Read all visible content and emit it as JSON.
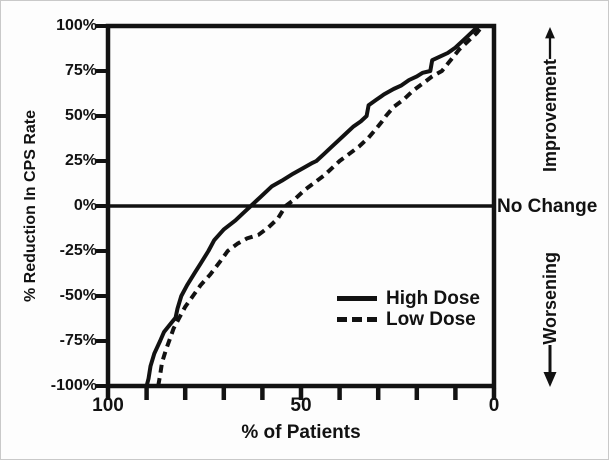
{
  "figure": {
    "background": "#fdfdfd",
    "ink": "#121212"
  },
  "chart_data": {
    "type": "line",
    "title": "",
    "xlabel": "% of Patients",
    "ylabel": "% Reduction In CPS Rate",
    "x_axis": {
      "min": 0,
      "max": 100,
      "direction": "100 at left, 0 at right",
      "major_tick_values": [
        100,
        50,
        0
      ],
      "major_tick_labels": [
        "100",
        "50",
        "0"
      ],
      "minor_tick_step": 10
    },
    "y_axis": {
      "min": -100,
      "max": 100,
      "tick_step": 25,
      "tick_values": [
        100,
        75,
        50,
        25,
        0,
        -25,
        -50,
        -75,
        -100
      ],
      "tick_labels": [
        "100%",
        "75%",
        "50%",
        "25%",
        "0%",
        "-25%",
        "-50%",
        "-75%",
        "-100%"
      ]
    },
    "reference_line": {
      "y": 0,
      "label": "No Change"
    },
    "legend": {
      "position": "inside-lower-right",
      "entries": [
        "High Dose",
        "Low Dose"
      ]
    },
    "series": [
      {
        "name": "High Dose",
        "style": "solid",
        "points_percent_patients_vs_percent_reduction": [
          [
            90,
            -100
          ],
          [
            89.5,
            -96
          ],
          [
            89,
            -89
          ],
          [
            88,
            -82
          ],
          [
            86.5,
            -75
          ],
          [
            85.5,
            -70
          ],
          [
            84,
            -66
          ],
          [
            82.5,
            -62
          ],
          [
            82,
            -57
          ],
          [
            81,
            -50
          ],
          [
            79.5,
            -44
          ],
          [
            77.5,
            -37
          ],
          [
            76,
            -32
          ],
          [
            74,
            -25
          ],
          [
            72.5,
            -19
          ],
          [
            70,
            -13
          ],
          [
            67,
            -8
          ],
          [
            65,
            -4
          ],
          [
            63,
            0
          ],
          [
            60.5,
            5
          ],
          [
            57.5,
            11
          ],
          [
            55,
            14
          ],
          [
            52,
            18
          ],
          [
            49.5,
            21
          ],
          [
            47,
            24
          ],
          [
            46,
            25
          ],
          [
            44,
            29
          ],
          [
            42,
            33
          ],
          [
            40.5,
            36
          ],
          [
            38.5,
            40
          ],
          [
            36.5,
            44
          ],
          [
            34.5,
            47
          ],
          [
            33,
            50
          ],
          [
            32.5,
            56
          ],
          [
            30.5,
            59
          ],
          [
            28.5,
            62
          ],
          [
            26,
            65
          ],
          [
            24,
            67
          ],
          [
            22,
            70
          ],
          [
            20,
            72
          ],
          [
            18.5,
            74
          ],
          [
            16.5,
            75
          ],
          [
            16,
            81
          ],
          [
            14,
            83
          ],
          [
            12,
            85
          ],
          [
            10,
            88
          ],
          [
            8.5,
            91
          ],
          [
            7,
            94
          ],
          [
            5.5,
            97
          ],
          [
            4,
            100
          ]
        ]
      },
      {
        "name": "Low Dose",
        "style": "dashed",
        "points_percent_patients_vs_percent_reduction": [
          [
            87,
            -100
          ],
          [
            86.5,
            -94
          ],
          [
            86,
            -87
          ],
          [
            85,
            -80
          ],
          [
            84,
            -74
          ],
          [
            83,
            -68
          ],
          [
            81.5,
            -62
          ],
          [
            80,
            -56
          ],
          [
            78,
            -50
          ],
          [
            76,
            -44
          ],
          [
            73.5,
            -38
          ],
          [
            71,
            -31
          ],
          [
            69,
            -25
          ],
          [
            66.5,
            -21
          ],
          [
            64,
            -18
          ],
          [
            61,
            -16
          ],
          [
            58.5,
            -12
          ],
          [
            56,
            -7
          ],
          [
            54,
            0
          ],
          [
            51.5,
            4
          ],
          [
            49,
            9
          ],
          [
            46.5,
            13
          ],
          [
            44,
            17
          ],
          [
            41.5,
            22
          ],
          [
            40,
            25
          ],
          [
            37.5,
            29
          ],
          [
            35,
            33
          ],
          [
            32.5,
            38
          ],
          [
            30.5,
            43
          ],
          [
            29,
            47
          ],
          [
            28,
            50
          ],
          [
            26,
            55
          ],
          [
            23.5,
            59
          ],
          [
            21,
            64
          ],
          [
            18.5,
            68
          ],
          [
            16,
            72
          ],
          [
            13.5,
            75
          ],
          [
            12,
            79
          ],
          [
            10.5,
            83
          ],
          [
            9,
            87
          ],
          [
            7.5,
            90
          ],
          [
            6,
            93
          ],
          [
            4.5,
            96
          ],
          [
            3,
            100
          ]
        ]
      }
    ],
    "annotations": {
      "improvement": {
        "text": "Improvement",
        "arrow": "up"
      },
      "no_change": {
        "text": "No Change"
      },
      "worsening": {
        "text": "Worsening",
        "arrow": "down"
      }
    }
  }
}
